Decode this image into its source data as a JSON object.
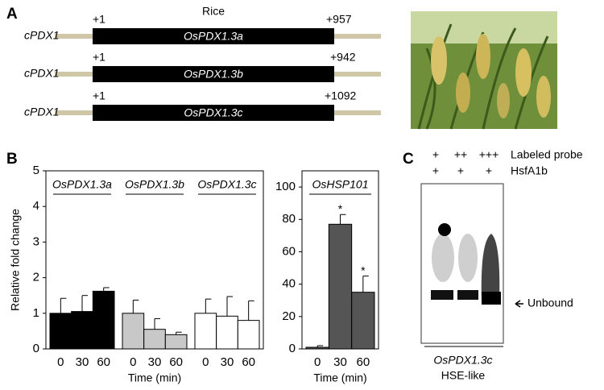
{
  "panel_a": {
    "label": "A",
    "title": "Rice",
    "genes": [
      {
        "left": "cPDX1",
        "name": "OsPDX1.3a",
        "start": "+1",
        "end": "+957"
      },
      {
        "left": "cPDX1",
        "name": "OsPDX1.3b",
        "start": "+1",
        "end": "+942"
      },
      {
        "left": "cPDX1",
        "name": "OsPDX1.3c",
        "start": "+1",
        "end": "+1092"
      }
    ]
  },
  "panel_b": {
    "label": "B"
  },
  "chart_data": [
    {
      "type": "bar",
      "y_label": "Relative fold change",
      "x_label": "Time (min)",
      "categories": [
        "0",
        "30",
        "60"
      ],
      "ylim": [
        0,
        5
      ],
      "yticks": [
        0,
        1,
        2,
        3,
        4,
        5
      ],
      "series": [
        {
          "name": "OsPDX1.3a",
          "color": "#000000",
          "values": [
            1.0,
            1.05,
            1.62
          ],
          "errors": [
            0.42,
            0.45,
            0.1
          ]
        },
        {
          "name": "OsPDX1.3b",
          "color": "#c8c8c8",
          "values": [
            1.0,
            0.55,
            0.4
          ],
          "errors": [
            0.37,
            0.3,
            0.07
          ]
        },
        {
          "name": "OsPDX1.3c",
          "color": "#ffffff",
          "values": [
            1.0,
            0.92,
            0.8
          ],
          "errors": [
            0.4,
            0.55,
            0.55
          ]
        }
      ]
    },
    {
      "type": "bar",
      "x_label": "Time (min)",
      "categories": [
        "0",
        "30",
        "60"
      ],
      "ylim": [
        0,
        110
      ],
      "yticks": [
        0,
        20,
        40,
        60,
        80,
        100
      ],
      "series": [
        {
          "name": "OsHSP101",
          "color": "#555555",
          "values": [
            1,
            77,
            35
          ],
          "errors": [
            1,
            6,
            10
          ],
          "significance": [
            null,
            "*",
            "*"
          ]
        }
      ]
    }
  ],
  "panel_c": {
    "label": "C",
    "rows": [
      {
        "marks": [
          "+",
          "++",
          "+++"
        ],
        "label": "Labeled probe"
      },
      {
        "marks": [
          "+",
          "+",
          "+"
        ],
        "label": "HsfA1b"
      }
    ],
    "band_label": "Unbound",
    "probe": "OsPDX1.3c",
    "probe_type": "HSE-like"
  }
}
